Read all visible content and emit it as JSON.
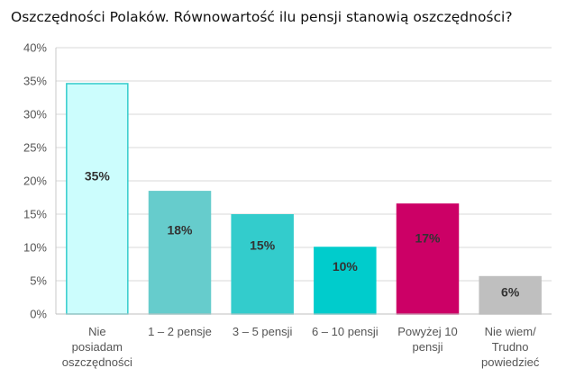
{
  "title": "Oszczędności Polaków. Równowartość ilu pensji stanowią oszczędności?",
  "chart_data": {
    "type": "bar",
    "title": "Oszczędności Polaków. Równowartość ilu pensji stanowią oszczędności?",
    "categories": [
      [
        "Nie",
        "posiadam",
        "oszczędności"
      ],
      [
        "1 – 2 pensje"
      ],
      [
        "3 – 5 pensji"
      ],
      [
        "6 – 10 pensji"
      ],
      [
        "Powyżej 10",
        "pensji"
      ],
      [
        "Nie wiem/",
        "Trudno",
        "powiedzieć"
      ]
    ],
    "values": [
      35,
      18,
      15,
      10,
      17,
      6
    ],
    "value_labels": [
      "35%",
      "18%",
      "15%",
      "10%",
      "17%",
      "6%"
    ],
    "plotted_values": [
      34.6,
      18.4,
      14.9,
      10.0,
      16.5,
      5.6
    ],
    "colors": [
      "#ccfdfd",
      "#66cccc",
      "#33cccc",
      "#00cccc",
      "#cc0066",
      "#bfbfbf"
    ],
    "border_colors": [
      "#33cccc",
      "#66cccc",
      "#33cccc",
      "#00cccc",
      "#cc0066",
      "#bfbfbf"
    ],
    "ylim": [
      0,
      40
    ],
    "yticks": [
      "0%",
      "5%",
      "10%",
      "15%",
      "20%",
      "25%",
      "30%",
      "35%",
      "40%"
    ],
    "grid": true,
    "legend": "none",
    "xlabel": "",
    "ylabel": ""
  }
}
